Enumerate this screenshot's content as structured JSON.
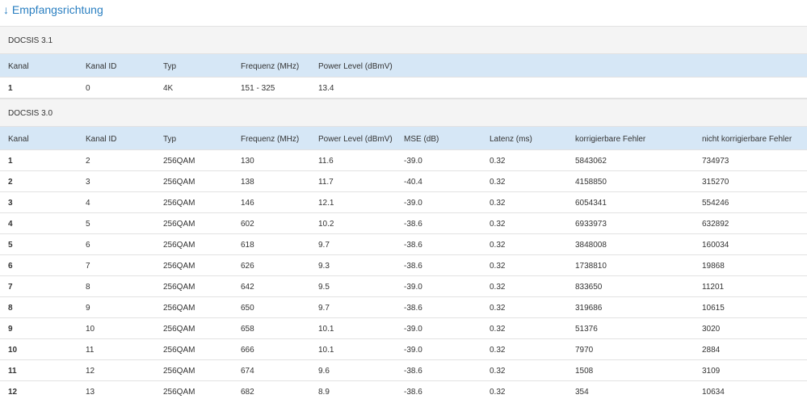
{
  "title": "↓ Empfangsrichtung",
  "sections": [
    {
      "title": "DOCSIS 3.1",
      "columns": [
        "Kanal",
        "Kanal ID",
        "Typ",
        "Frequenz (MHz)",
        "Power Level (dBmV)"
      ],
      "rows": [
        [
          "1",
          "0",
          "4K",
          "151 - 325",
          "13.4"
        ]
      ]
    },
    {
      "title": "DOCSIS 3.0",
      "columns": [
        "Kanal",
        "Kanal ID",
        "Typ",
        "Frequenz (MHz)",
        "Power Level (dBmV)",
        "MSE (dB)",
        "Latenz (ms)",
        "korrigierbare Fehler",
        "nicht korrigierbare Fehler"
      ],
      "rows": [
        [
          "1",
          "2",
          "256QAM",
          "130",
          "11.6",
          "-39.0",
          "0.32",
          "5843062",
          "734973"
        ],
        [
          "2",
          "3",
          "256QAM",
          "138",
          "11.7",
          "-40.4",
          "0.32",
          "4158850",
          "315270"
        ],
        [
          "3",
          "4",
          "256QAM",
          "146",
          "12.1",
          "-39.0",
          "0.32",
          "6054341",
          "554246"
        ],
        [
          "4",
          "5",
          "256QAM",
          "602",
          "10.2",
          "-38.6",
          "0.32",
          "6933973",
          "632892"
        ],
        [
          "5",
          "6",
          "256QAM",
          "618",
          "9.7",
          "-38.6",
          "0.32",
          "3848008",
          "160034"
        ],
        [
          "6",
          "7",
          "256QAM",
          "626",
          "9.3",
          "-38.6",
          "0.32",
          "1738810",
          "19868"
        ],
        [
          "7",
          "8",
          "256QAM",
          "642",
          "9.5",
          "-39.0",
          "0.32",
          "833650",
          "11201"
        ],
        [
          "8",
          "9",
          "256QAM",
          "650",
          "9.7",
          "-38.6",
          "0.32",
          "319686",
          "10615"
        ],
        [
          "9",
          "10",
          "256QAM",
          "658",
          "10.1",
          "-39.0",
          "0.32",
          "51376",
          "3020"
        ],
        [
          "10",
          "11",
          "256QAM",
          "666",
          "10.1",
          "-39.0",
          "0.32",
          "7970",
          "2884"
        ],
        [
          "11",
          "12",
          "256QAM",
          "674",
          "9.6",
          "-38.6",
          "0.32",
          "1508",
          "3109"
        ],
        [
          "12",
          "13",
          "256QAM",
          "682",
          "8.9",
          "-38.6",
          "0.32",
          "354",
          "10634"
        ]
      ]
    }
  ]
}
